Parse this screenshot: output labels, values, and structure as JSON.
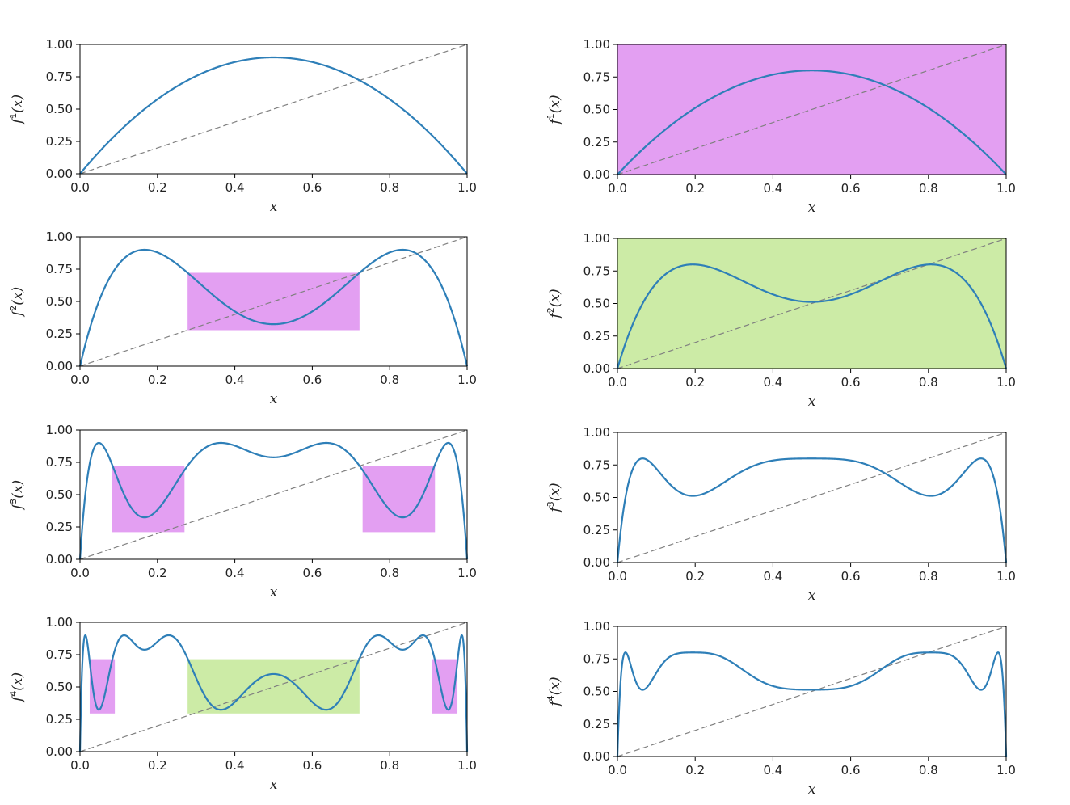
{
  "colors": {
    "curve": "#2e7fb8",
    "diagonal": "#808080",
    "magenta_fill": "#e39ff2",
    "green_fill": "#ccebA6",
    "axes": "#000000"
  },
  "chart_data": [
    {
      "id": "left-1",
      "type": "line",
      "function": "r*x*(1-x)",
      "r": 3.6,
      "iterate": 1,
      "xlabel": "x",
      "ylabel": "f^1(x)",
      "ylabel_base": "f",
      "ylabel_sup": "1",
      "ylabel_arg": "(x)",
      "xlim": [
        0,
        1
      ],
      "ylim": [
        0,
        1
      ],
      "x_ticks": [
        "0.0",
        "0.2",
        "0.4",
        "0.6",
        "0.8",
        "1.0"
      ],
      "y_ticks": [
        "0.00",
        "0.25",
        "0.50",
        "0.75",
        "1.00"
      ],
      "background": null,
      "boxes": []
    },
    {
      "id": "left-2",
      "type": "line",
      "function": "r*x*(1-x)",
      "r": 3.6,
      "iterate": 2,
      "xlabel": "x",
      "ylabel": "f^2(x)",
      "ylabel_base": "f",
      "ylabel_sup": "2",
      "ylabel_arg": "(x)",
      "xlim": [
        0,
        1
      ],
      "ylim": [
        0,
        1
      ],
      "x_ticks": [
        "0.0",
        "0.2",
        "0.4",
        "0.6",
        "0.8",
        "1.0"
      ],
      "y_ticks": [
        "0.00",
        "0.25",
        "0.50",
        "0.75",
        "1.00"
      ],
      "background": null,
      "boxes": [
        {
          "x0": 0.278,
          "x1": 0.722,
          "y0": 0.278,
          "y1": 0.722,
          "color": "magenta"
        }
      ]
    },
    {
      "id": "left-3",
      "type": "line",
      "function": "r*x*(1-x)",
      "r": 3.6,
      "iterate": 3,
      "xlabel": "x",
      "ylabel": "f^3(x)",
      "ylabel_base": "f",
      "ylabel_sup": "3",
      "ylabel_arg": "(x)",
      "xlim": [
        0,
        1
      ],
      "ylim": [
        0,
        1
      ],
      "x_ticks": [
        "0.0",
        "0.2",
        "0.4",
        "0.6",
        "0.8",
        "1.0"
      ],
      "y_ticks": [
        "0.00",
        "0.25",
        "0.50",
        "0.75",
        "1.00"
      ],
      "background": null,
      "boxes": [
        {
          "x0": 0.083,
          "x1": 0.27,
          "y0": 0.21,
          "y1": 0.725,
          "color": "magenta"
        },
        {
          "x0": 0.73,
          "x1": 0.917,
          "y0": 0.21,
          "y1": 0.725,
          "color": "magenta"
        }
      ]
    },
    {
      "id": "left-4",
      "type": "line",
      "function": "r*x*(1-x)",
      "r": 3.6,
      "iterate": 4,
      "xlabel": "x",
      "ylabel": "f^4(x)",
      "ylabel_base": "f",
      "ylabel_sup": "4",
      "ylabel_arg": "(x)",
      "xlim": [
        0,
        1
      ],
      "ylim": [
        0,
        1
      ],
      "x_ticks": [
        "0.0",
        "0.2",
        "0.4",
        "0.6",
        "0.8",
        "1.0"
      ],
      "y_ticks": [
        "0.00",
        "0.25",
        "0.50",
        "0.75",
        "1.00"
      ],
      "background": null,
      "boxes": [
        {
          "x0": 0.025,
          "x1": 0.09,
          "y0": 0.295,
          "y1": 0.715,
          "color": "magenta"
        },
        {
          "x0": 0.278,
          "x1": 0.722,
          "y0": 0.295,
          "y1": 0.715,
          "color": "green"
        },
        {
          "x0": 0.91,
          "x1": 0.975,
          "y0": 0.295,
          "y1": 0.715,
          "color": "magenta"
        }
      ]
    },
    {
      "id": "right-1",
      "type": "line",
      "function": "r*x*(1-x)",
      "r": 3.2,
      "iterate": 1,
      "xlabel": "x",
      "ylabel": "f^1(x)",
      "ylabel_base": "f",
      "ylabel_sup": "1",
      "ylabel_arg": "(x)",
      "xlim": [
        0,
        1
      ],
      "ylim": [
        0,
        1
      ],
      "x_ticks": [
        "0.0",
        "0.2",
        "0.4",
        "0.6",
        "0.8",
        "1.0"
      ],
      "y_ticks": [
        "0.00",
        "0.25",
        "0.50",
        "0.75",
        "1.00"
      ],
      "background": "magenta",
      "boxes": []
    },
    {
      "id": "right-2",
      "type": "line",
      "function": "r*x*(1-x)",
      "r": 3.2,
      "iterate": 2,
      "xlabel": "x",
      "ylabel": "f^2(x)",
      "ylabel_base": "f",
      "ylabel_sup": "2",
      "ylabel_arg": "(x)",
      "xlim": [
        0,
        1
      ],
      "ylim": [
        0,
        1
      ],
      "x_ticks": [
        "0.0",
        "0.2",
        "0.4",
        "0.6",
        "0.8",
        "1.0"
      ],
      "y_ticks": [
        "0.00",
        "0.25",
        "0.50",
        "0.75",
        "1.00"
      ],
      "background": "green",
      "boxes": []
    },
    {
      "id": "right-3",
      "type": "line",
      "function": "r*x*(1-x)",
      "r": 3.2,
      "iterate": 3,
      "xlabel": "x",
      "ylabel": "f^3(x)",
      "ylabel_base": "f",
      "ylabel_sup": "3",
      "ylabel_arg": "(x)",
      "xlim": [
        0,
        1
      ],
      "ylim": [
        0,
        1
      ],
      "x_ticks": [
        "0.0",
        "0.2",
        "0.4",
        "0.6",
        "0.8",
        "1.0"
      ],
      "y_ticks": [
        "0.00",
        "0.25",
        "0.50",
        "0.75",
        "1.00"
      ],
      "background": null,
      "boxes": []
    },
    {
      "id": "right-4",
      "type": "line",
      "function": "r*x*(1-x)",
      "r": 3.2,
      "iterate": 4,
      "xlabel": "x",
      "ylabel": "f^4(x)",
      "ylabel_base": "f",
      "ylabel_sup": "4",
      "ylabel_arg": "(x)",
      "xlim": [
        0,
        1
      ],
      "ylim": [
        0,
        1
      ],
      "x_ticks": [
        "0.0",
        "0.2",
        "0.4",
        "0.6",
        "0.8",
        "1.0"
      ],
      "y_ticks": [
        "0.00",
        "0.25",
        "0.50",
        "0.75",
        "1.00"
      ],
      "background": null,
      "boxes": []
    }
  ]
}
